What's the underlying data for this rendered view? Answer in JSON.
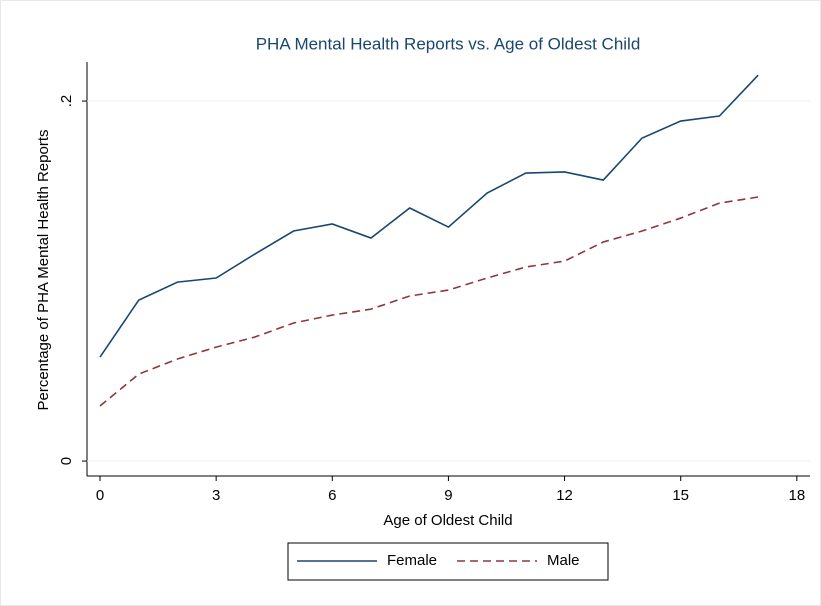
{
  "chart_data": {
    "type": "line",
    "title": "PHA Mental Health Reports vs. Age of Oldest Child",
    "x_label": "Age of Oldest Child",
    "y_label": "Percentage of PHA Mental Health Reports",
    "x": [
      0,
      1,
      2,
      3,
      4,
      5,
      6,
      7,
      8,
      9,
      10,
      11,
      12,
      13,
      14,
      15,
      16,
      17
    ],
    "series": [
      {
        "name": "Female",
        "color": "#1a476f",
        "dash": "solid",
        "values": [
          0.0578,
          0.0894,
          0.0994,
          0.1017,
          0.115,
          0.1278,
          0.1317,
          0.1239,
          0.1406,
          0.13,
          0.1489,
          0.16,
          0.1606,
          0.1561,
          0.1794,
          0.1889,
          0.1917,
          0.2144
        ]
      },
      {
        "name": "Male",
        "color": "#90353b",
        "dash": "dashed",
        "values": [
          0.0306,
          0.0483,
          0.0567,
          0.0633,
          0.0689,
          0.0767,
          0.0811,
          0.0844,
          0.0917,
          0.095,
          0.1017,
          0.1078,
          0.1111,
          0.1217,
          0.1278,
          0.135,
          0.1433,
          0.1467
        ]
      }
    ],
    "xlim": [
      -0.336,
      18.34
    ],
    "xticks": [
      0,
      3,
      6,
      9,
      12,
      15,
      18
    ],
    "ylim": [
      -0.0083,
      0.2217
    ],
    "yticks": [
      0,
      {
        "value": 0.2,
        "label": ".2"
      }
    ],
    "grid": true,
    "legend": "bottom"
  }
}
